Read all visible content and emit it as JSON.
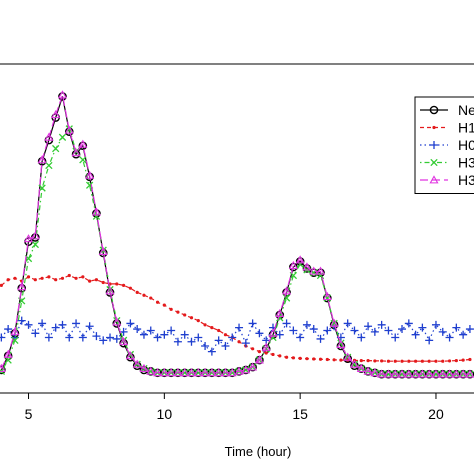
{
  "chart_data": {
    "type": "line",
    "title": "",
    "xlabel": "Time (hour)",
    "ylabel": "",
    "xlim": [
      3.95,
      21.4
    ],
    "ylim": [
      0,
      1
    ],
    "x_ticks": [
      5,
      10,
      15,
      20
    ],
    "x_tick_labels": [
      "5",
      "10",
      "15",
      "20"
    ],
    "grid": false,
    "legend_placement": "top-right",
    "series": [
      {
        "name": "Ne",
        "color": "#000000",
        "marker": "circle",
        "line_style": "solid",
        "x": [
          4.0,
          4.25,
          4.5,
          4.75,
          5.0,
          5.25,
          5.5,
          5.75,
          6.0,
          6.25,
          6.5,
          6.75,
          7.0,
          7.25,
          7.5,
          7.75,
          8.0,
          8.25,
          8.5,
          8.75,
          9.0,
          9.25,
          9.5,
          9.75,
          10.0,
          10.25,
          10.5,
          10.75,
          11.0,
          11.25,
          11.5,
          11.75,
          12.0,
          12.25,
          12.5,
          12.75,
          13.0,
          13.25,
          13.5,
          13.75,
          14.0,
          14.25,
          14.5,
          14.75,
          15.0,
          15.25,
          15.5,
          15.75,
          16.0,
          16.25,
          16.5,
          16.75,
          17.0,
          17.25,
          17.5,
          17.75,
          18.0,
          18.25,
          18.5,
          18.75,
          19.0,
          19.25,
          19.5,
          19.75,
          20.0,
          20.25,
          20.5,
          20.75,
          21.0,
          21.25
        ],
        "y": [
          0.025,
          0.075,
          0.155,
          0.315,
          0.48,
          0.495,
          0.765,
          0.84,
          0.92,
          0.995,
          0.87,
          0.79,
          0.82,
          0.71,
          0.58,
          0.44,
          0.3,
          0.19,
          0.12,
          0.07,
          0.04,
          0.025,
          0.02,
          0.015,
          0.015,
          0.015,
          0.015,
          0.015,
          0.015,
          0.015,
          0.015,
          0.015,
          0.015,
          0.015,
          0.015,
          0.02,
          0.025,
          0.035,
          0.06,
          0.1,
          0.15,
          0.22,
          0.3,
          0.39,
          0.41,
          0.385,
          0.37,
          0.37,
          0.28,
          0.185,
          0.11,
          0.065,
          0.04,
          0.03,
          0.02,
          0.015,
          0.01,
          0.01,
          0.01,
          0.01,
          0.01,
          0.01,
          0.01,
          0.01,
          0.01,
          0.01,
          0.01,
          0.01,
          0.01,
          0.01
        ]
      },
      {
        "name": "H1",
        "color": "#e41a1c",
        "marker": "dot",
        "line_style": "dashed",
        "x": [
          4.0,
          4.25,
          4.5,
          4.75,
          5.0,
          5.25,
          5.5,
          5.75,
          6.0,
          6.25,
          6.5,
          6.75,
          7.0,
          7.25,
          7.5,
          7.75,
          8.0,
          8.25,
          8.5,
          8.75,
          9.0,
          9.25,
          9.5,
          9.75,
          10.0,
          10.25,
          10.5,
          10.75,
          11.0,
          11.25,
          11.5,
          11.75,
          12.0,
          12.25,
          12.5,
          12.75,
          13.0,
          13.25,
          13.5,
          13.75,
          14.0,
          14.25,
          14.5,
          14.75,
          15.0,
          15.25,
          15.5,
          15.75,
          16.0,
          16.25,
          16.5,
          16.75,
          17.0,
          17.25,
          17.5,
          17.75,
          18.0,
          18.25,
          18.5,
          18.75,
          19.0,
          19.25,
          19.5,
          19.75,
          20.0,
          20.25,
          20.5,
          20.75,
          21.0,
          21.25
        ],
        "y": [
          0.325,
          0.345,
          0.35,
          0.34,
          0.355,
          0.345,
          0.35,
          0.355,
          0.345,
          0.35,
          0.36,
          0.35,
          0.355,
          0.34,
          0.345,
          0.335,
          0.33,
          0.33,
          0.325,
          0.315,
          0.3,
          0.29,
          0.28,
          0.265,
          0.255,
          0.24,
          0.23,
          0.22,
          0.21,
          0.2,
          0.185,
          0.175,
          0.165,
          0.15,
          0.14,
          0.125,
          0.11,
          0.1,
          0.09,
          0.085,
          0.08,
          0.075,
          0.07,
          0.068,
          0.066,
          0.065,
          0.064,
          0.063,
          0.062,
          0.061,
          0.06,
          0.06,
          0.059,
          0.058,
          0.058,
          0.057,
          0.057,
          0.056,
          0.056,
          0.056,
          0.056,
          0.056,
          0.056,
          0.056,
          0.056,
          0.056,
          0.057,
          0.058,
          0.06,
          0.062
        ]
      },
      {
        "name": "H0",
        "color": "#1f3fcf",
        "marker": "plus",
        "line_style": "dotted",
        "x": [
          4.0,
          4.25,
          4.5,
          4.75,
          5.0,
          5.25,
          5.5,
          5.75,
          6.0,
          6.25,
          6.5,
          6.75,
          7.0,
          7.25,
          7.5,
          7.75,
          8.0,
          8.25,
          8.5,
          8.75,
          9.0,
          9.25,
          9.5,
          9.75,
          10.0,
          10.25,
          10.5,
          10.75,
          11.0,
          11.25,
          11.5,
          11.75,
          12.0,
          12.25,
          12.5,
          12.75,
          13.0,
          13.25,
          13.5,
          13.75,
          14.0,
          14.25,
          14.5,
          14.75,
          15.0,
          15.25,
          15.5,
          15.75,
          16.0,
          16.25,
          16.5,
          16.75,
          17.0,
          17.25,
          17.5,
          17.75,
          18.0,
          18.25,
          18.5,
          18.75,
          19.0,
          19.25,
          19.5,
          19.75,
          20.0,
          20.25,
          20.5,
          20.75,
          21.0,
          21.25
        ],
        "y": [
          0.14,
          0.17,
          0.14,
          0.2,
          0.185,
          0.155,
          0.19,
          0.14,
          0.175,
          0.185,
          0.14,
          0.19,
          0.14,
          0.18,
          0.145,
          0.13,
          0.14,
          0.135,
          0.16,
          0.19,
          0.17,
          0.15,
          0.165,
          0.14,
          0.15,
          0.165,
          0.125,
          0.15,
          0.125,
          0.14,
          0.11,
          0.09,
          0.13,
          0.11,
          0.14,
          0.175,
          0.12,
          0.19,
          0.155,
          0.13,
          0.175,
          0.15,
          0.19,
          0.165,
          0.14,
          0.185,
          0.17,
          0.135,
          0.165,
          0.18,
          0.14,
          0.19,
          0.165,
          0.14,
          0.18,
          0.16,
          0.185,
          0.165,
          0.14,
          0.17,
          0.19,
          0.15,
          0.175,
          0.13,
          0.185,
          0.16,
          0.14,
          0.175,
          0.15,
          0.17
        ]
      },
      {
        "name": "H3",
        "color": "#33cc33",
        "marker": "cross",
        "line_style": "dotdash",
        "x": [
          4.0,
          4.25,
          4.5,
          4.75,
          5.0,
          5.25,
          5.5,
          5.75,
          6.0,
          6.25,
          6.5,
          6.75,
          7.0,
          7.25,
          7.5,
          7.75,
          8.0,
          8.25,
          8.5,
          8.75,
          9.0,
          9.25,
          9.5,
          9.75,
          10.0,
          10.25,
          10.5,
          10.75,
          11.0,
          11.25,
          11.5,
          11.75,
          12.0,
          12.25,
          12.5,
          12.75,
          13.0,
          13.25,
          13.5,
          13.75,
          14.0,
          14.25,
          14.5,
          14.75,
          15.0,
          15.25,
          15.5,
          15.75,
          16.0,
          16.25,
          16.5,
          16.75,
          17.0,
          17.25,
          17.5,
          17.75,
          18.0,
          18.25,
          18.5,
          18.75,
          19.0,
          19.25,
          19.5,
          19.75,
          20.0,
          20.25,
          20.5,
          20.75,
          21.0,
          21.25
        ],
        "y": [
          0.02,
          0.06,
          0.13,
          0.27,
          0.42,
          0.47,
          0.67,
          0.75,
          0.81,
          0.85,
          0.88,
          0.8,
          0.77,
          0.68,
          0.57,
          0.45,
          0.31,
          0.2,
          0.13,
          0.08,
          0.045,
          0.03,
          0.02,
          0.015,
          0.015,
          0.015,
          0.015,
          0.015,
          0.015,
          0.015,
          0.015,
          0.015,
          0.015,
          0.015,
          0.015,
          0.02,
          0.025,
          0.035,
          0.06,
          0.1,
          0.14,
          0.21,
          0.28,
          0.36,
          0.4,
          0.38,
          0.37,
          0.36,
          0.28,
          0.19,
          0.12,
          0.07,
          0.045,
          0.03,
          0.02,
          0.015,
          0.01,
          0.01,
          0.01,
          0.01,
          0.01,
          0.01,
          0.01,
          0.01,
          0.01,
          0.01,
          0.01,
          0.01,
          0.01,
          0.01
        ]
      },
      {
        "name": "H3",
        "color": "#e033e0",
        "marker": "triangle",
        "line_style": "longdash",
        "x": [
          4.0,
          4.25,
          4.5,
          4.75,
          5.0,
          5.25,
          5.5,
          5.75,
          6.0,
          6.25,
          6.5,
          6.75,
          7.0,
          7.25,
          7.5,
          7.75,
          8.0,
          8.25,
          8.5,
          8.75,
          9.0,
          9.25,
          9.5,
          9.75,
          10.0,
          10.25,
          10.5,
          10.75,
          11.0,
          11.25,
          11.5,
          11.75,
          12.0,
          12.25,
          12.5,
          12.75,
          13.0,
          13.25,
          13.5,
          13.75,
          14.0,
          14.25,
          14.5,
          14.75,
          15.0,
          15.25,
          15.5,
          15.75,
          16.0,
          16.25,
          16.5,
          16.75,
          17.0,
          17.25,
          17.5,
          17.75,
          18.0,
          18.25,
          18.5,
          18.75,
          19.0,
          19.25,
          19.5,
          19.75,
          20.0,
          20.25,
          20.5,
          20.75,
          21.0,
          21.25
        ],
        "y": [
          0.03,
          0.08,
          0.16,
          0.32,
          0.49,
          0.5,
          0.77,
          0.85,
          0.93,
          1.0,
          0.875,
          0.795,
          0.825,
          0.715,
          0.585,
          0.445,
          0.305,
          0.195,
          0.125,
          0.075,
          0.045,
          0.03,
          0.02,
          0.015,
          0.015,
          0.015,
          0.015,
          0.015,
          0.015,
          0.015,
          0.015,
          0.015,
          0.015,
          0.015,
          0.015,
          0.02,
          0.025,
          0.035,
          0.06,
          0.105,
          0.155,
          0.225,
          0.305,
          0.395,
          0.415,
          0.39,
          0.375,
          0.375,
          0.285,
          0.19,
          0.115,
          0.07,
          0.045,
          0.03,
          0.02,
          0.015,
          0.01,
          0.01,
          0.01,
          0.01,
          0.01,
          0.01,
          0.01,
          0.01,
          0.01,
          0.01,
          0.01,
          0.01,
          0.01,
          0.01
        ]
      }
    ]
  }
}
